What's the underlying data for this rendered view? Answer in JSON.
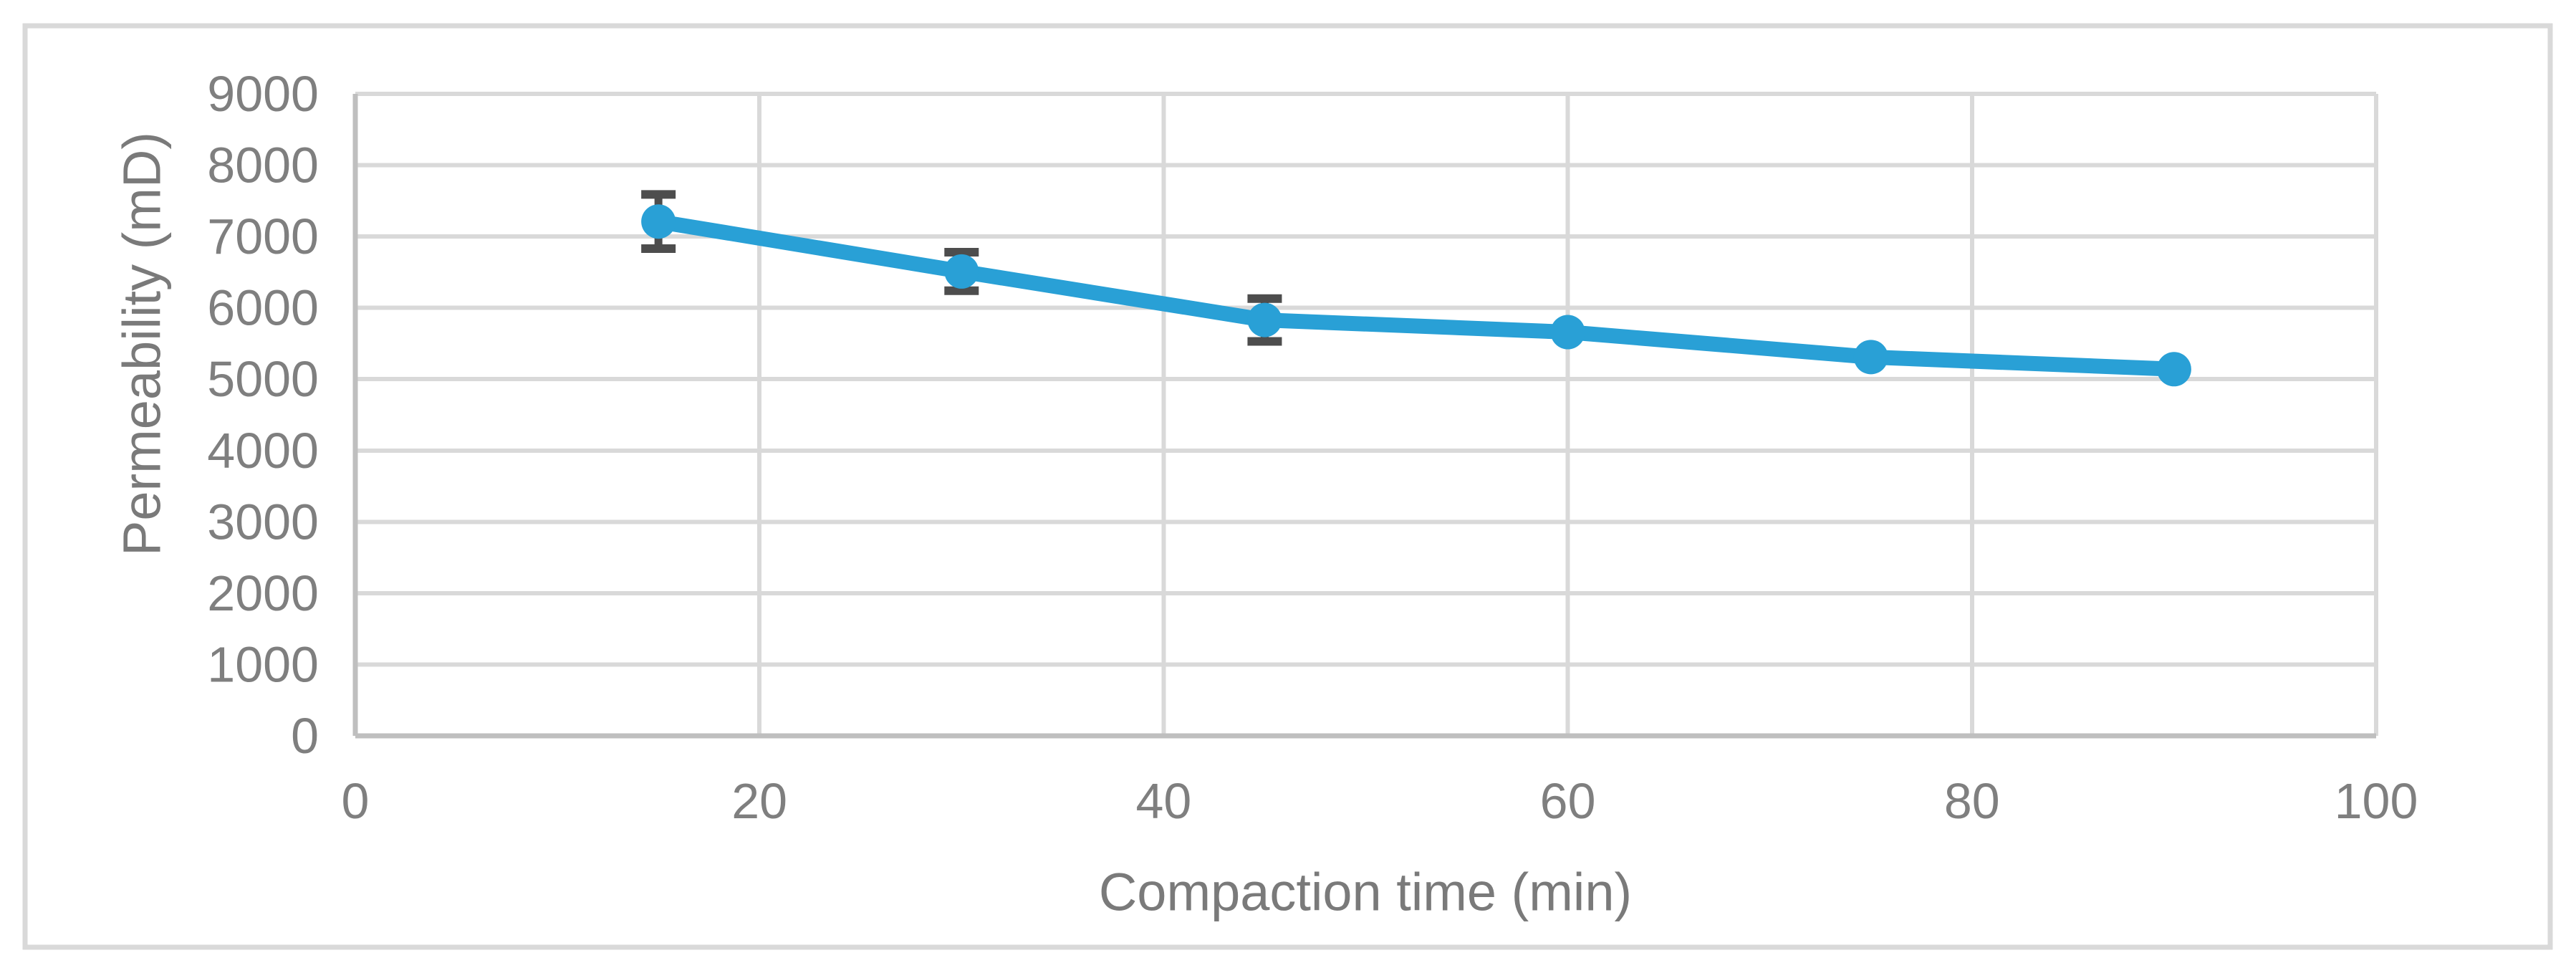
{
  "figure": {
    "background_color": "#ffffff",
    "border_color": "#d9d9d9"
  },
  "chart_data": {
    "type": "line",
    "title": "",
    "xlabel": "Compaction time (min)",
    "ylabel": "Permeability (mD)",
    "x": [
      15,
      30,
      45,
      60,
      75,
      90
    ],
    "series": [
      {
        "name": "Permeability",
        "values": [
          7210,
          6510,
          5830,
          5660,
          5310,
          5140
        ],
        "y_err": [
          380,
          270,
          300,
          0,
          0,
          0
        ],
        "color": "#29a0d6"
      }
    ],
    "xlim": [
      0,
      100
    ],
    "ylim": [
      0,
      9000
    ],
    "xticks": [
      0,
      20,
      40,
      60,
      80,
      100
    ],
    "yticks": [
      0,
      1000,
      2000,
      3000,
      4000,
      5000,
      6000,
      7000,
      8000,
      9000
    ],
    "grid": true,
    "legend_position": "none",
    "colors": {
      "gridline": "#d9d9d9",
      "axis_line": "#bfbfbf",
      "error_bar": "#4d4d4d",
      "tick_text": "#7f7f7f",
      "title_text": "#7a7a7a"
    }
  }
}
